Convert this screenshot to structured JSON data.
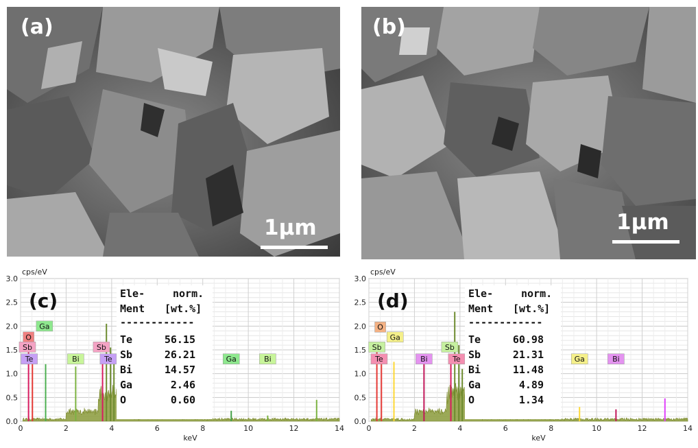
{
  "panels": {
    "a": {
      "label": "(a)",
      "scale": "1μm"
    },
    "b": {
      "label": "(b)",
      "scale": "1μm"
    }
  },
  "chart_data": [
    {
      "type": "line",
      "panel_label": "(c)",
      "ylabel": "cps/eV",
      "xlabel": "keV",
      "xlim": [
        0,
        14
      ],
      "ylim": [
        0,
        3.0
      ],
      "x_ticks": [
        0,
        2,
        4,
        6,
        8,
        10,
        12,
        14
      ],
      "y_ticks": [
        "0.0",
        "0.5",
        "1.0",
        "1.5",
        "2.0",
        "2.5",
        "3.0"
      ],
      "table": {
        "col1": [
          "Ele-",
          "Ment"
        ],
        "col2": [
          "norm.",
          "[wt.%]"
        ],
        "separator": "------------",
        "rows": [
          {
            "element": "Te",
            "value": "56.15"
          },
          {
            "element": "Sb",
            "value": "26.21"
          },
          {
            "element": "Bi",
            "value": "14.57"
          },
          {
            "element": "Ga",
            "value": "2.46"
          },
          {
            "element": "O",
            "value": "0.60"
          }
        ]
      },
      "peaks": [
        {
          "x": 0.35,
          "y": 1.55,
          "color": "#d81b60"
        },
        {
          "x": 0.52,
          "y": 1.4,
          "color": "#e53935"
        },
        {
          "x": 1.1,
          "y": 1.2,
          "color": "#4caf50"
        },
        {
          "x": 2.42,
          "y": 1.15,
          "color": "#7cb342"
        },
        {
          "x": 3.6,
          "y": 1.3,
          "color": "#d81b60"
        },
        {
          "x": 3.77,
          "y": 2.05,
          "color": "#6d8b2e"
        },
        {
          "x": 3.95,
          "y": 1.55,
          "color": "#6d8b2e"
        },
        {
          "x": 4.1,
          "y": 1.2,
          "color": "#6d8b2e"
        },
        {
          "x": 9.25,
          "y": 0.22,
          "color": "#43a047"
        },
        {
          "x": 10.85,
          "y": 0.12,
          "color": "#7cb342"
        },
        {
          "x": 13.0,
          "y": 0.45,
          "color": "#7cb342"
        }
      ],
      "tags": [
        {
          "text": "Ga",
          "x": 1.05,
          "y": 2.0,
          "color": "#8ee88e"
        },
        {
          "text": "O",
          "x": 0.35,
          "y": 1.77,
          "color": "#f08080"
        },
        {
          "text": "Sb",
          "x": 0.3,
          "y": 1.56,
          "color": "#f4a3c4"
        },
        {
          "text": "Te",
          "x": 0.38,
          "y": 1.31,
          "color": "#c6a0f5"
        },
        {
          "text": "Bi",
          "x": 2.42,
          "y": 1.31,
          "color": "#c8f59a"
        },
        {
          "text": "Sb",
          "x": 3.55,
          "y": 1.56,
          "color": "#f4a3c4"
        },
        {
          "text": "Te",
          "x": 3.85,
          "y": 1.31,
          "color": "#c6a0f5"
        },
        {
          "text": "Ga",
          "x": 9.25,
          "y": 1.31,
          "color": "#8ee88e"
        },
        {
          "text": "Bi",
          "x": 10.85,
          "y": 1.31,
          "color": "#c8f59a"
        }
      ]
    },
    {
      "type": "line",
      "panel_label": "(d)",
      "ylabel": "cps/eV",
      "xlabel": "keV",
      "xlim": [
        0,
        14
      ],
      "ylim": [
        0,
        3.0
      ],
      "x_ticks": [
        0,
        2,
        4,
        6,
        8,
        10,
        12,
        14
      ],
      "y_ticks": [
        "0.0",
        "0.5",
        "1.0",
        "1.5",
        "2.0",
        "2.5",
        "3.0"
      ],
      "table": {
        "col1": [
          "Ele-",
          "Ment"
        ],
        "col2": [
          "norm.",
          "[wt.%]"
        ],
        "separator": "------------",
        "rows": [
          {
            "element": "Te",
            "value": "60.98"
          },
          {
            "element": "Sb",
            "value": "21.31"
          },
          {
            "element": "Bi",
            "value": "11.48"
          },
          {
            "element": "Ga",
            "value": "4.89"
          },
          {
            "element": "O",
            "value": "1.34"
          }
        ]
      },
      "peaks": [
        {
          "x": 0.35,
          "y": 1.5,
          "color": "#e53935"
        },
        {
          "x": 0.55,
          "y": 1.4,
          "color": "#e53935"
        },
        {
          "x": 1.1,
          "y": 1.25,
          "color": "#fdd835"
        },
        {
          "x": 2.42,
          "y": 1.25,
          "color": "#c2185b"
        },
        {
          "x": 3.6,
          "y": 1.3,
          "color": "#d81b60"
        },
        {
          "x": 3.77,
          "y": 2.3,
          "color": "#6d8b2e"
        },
        {
          "x": 3.95,
          "y": 1.6,
          "color": "#6d8b2e"
        },
        {
          "x": 4.1,
          "y": 1.1,
          "color": "#6d8b2e"
        },
        {
          "x": 9.25,
          "y": 0.3,
          "color": "#fdd835"
        },
        {
          "x": 10.85,
          "y": 0.25,
          "color": "#c2185b"
        },
        {
          "x": 13.0,
          "y": 0.48,
          "color": "#e040fb"
        }
      ],
      "tags": [
        {
          "text": "O",
          "x": 0.5,
          "y": 1.98,
          "color": "#f4b183"
        },
        {
          "text": "Ga",
          "x": 1.15,
          "y": 1.77,
          "color": "#f5f08a"
        },
        {
          "text": "Sb",
          "x": 0.35,
          "y": 1.56,
          "color": "#c6f0a0"
        },
        {
          "text": "Te",
          "x": 0.45,
          "y": 1.31,
          "color": "#f48fb1"
        },
        {
          "text": "Bi",
          "x": 2.42,
          "y": 1.31,
          "color": "#e493f0"
        },
        {
          "text": "Sb",
          "x": 3.55,
          "y": 1.56,
          "color": "#c6f0a0"
        },
        {
          "text": "Te",
          "x": 3.85,
          "y": 1.31,
          "color": "#f48fb1"
        },
        {
          "text": "Ga",
          "x": 9.25,
          "y": 1.31,
          "color": "#f5f08a"
        },
        {
          "text": "Bi",
          "x": 10.85,
          "y": 1.31,
          "color": "#e493f0"
        }
      ]
    }
  ]
}
